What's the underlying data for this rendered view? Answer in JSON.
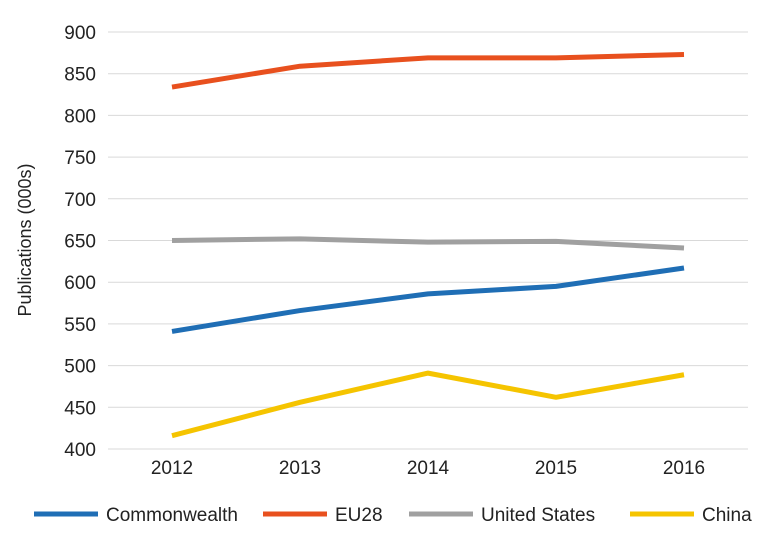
{
  "chart_data": {
    "type": "line",
    "x": [
      "2012",
      "2013",
      "2014",
      "2015",
      "2016"
    ],
    "ylabel": "Publications (000s)",
    "xlabel": "",
    "ylim": [
      400,
      900
    ],
    "yticks": [
      400,
      450,
      500,
      550,
      600,
      650,
      700,
      750,
      800,
      850,
      900
    ],
    "grid": true,
    "legend_position": "bottom",
    "series": [
      {
        "name": "Commonwealth",
        "color": "#1f6eb5",
        "values": [
          541,
          566,
          586,
          595,
          617
        ]
      },
      {
        "name": "EU28",
        "color": "#e8501e",
        "values": [
          834,
          859,
          869,
          869,
          873
        ]
      },
      {
        "name": "United States",
        "color": "#a0a0a0",
        "values": [
          650,
          652,
          648,
          649,
          641
        ]
      },
      {
        "name": "China",
        "color": "#f5c400",
        "values": [
          416,
          456,
          491,
          462,
          489
        ]
      }
    ]
  }
}
